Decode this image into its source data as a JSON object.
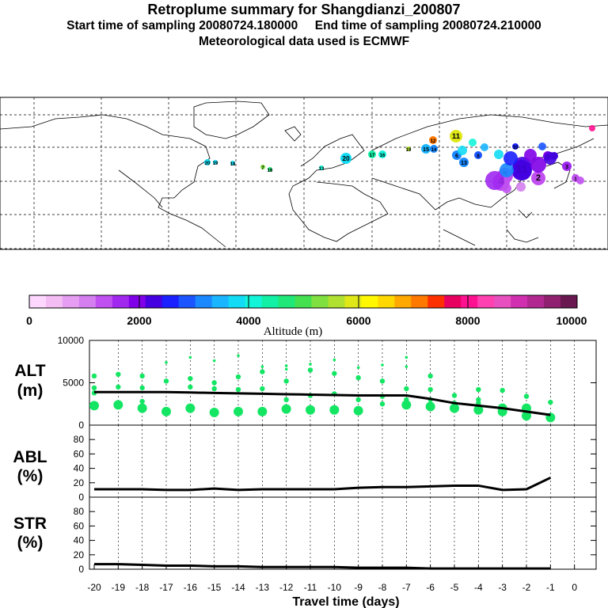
{
  "header": {
    "title": "Retroplume summary for Shangdianzi_200807",
    "subtitle_times": "Start time of sampling 20080724.180000     End time of sampling 20080724.210000",
    "subtitle_met": "Meteorological data used is ECMWF"
  },
  "map": {
    "label_texts": [
      "20",
      "20",
      "19",
      "19",
      "18",
      "17",
      "16",
      "16",
      "15",
      "14",
      "13",
      "13",
      "12",
      "11",
      "11",
      "10",
      "9",
      "8",
      "7",
      "6",
      "6",
      "5",
      "4",
      "3",
      "2",
      "1"
    ]
  },
  "colorbar": {
    "tick_labels": [
      "0",
      "2000",
      "4000",
      "6000",
      "8000",
      "10000"
    ],
    "title": "Altitude (m)",
    "colors": [
      "#fdd7fd",
      "#f4bdf4",
      "#e59ef2",
      "#d47ef0",
      "#c050ef",
      "#a028ef",
      "#8000e8",
      "#4400e0",
      "#1a20ff",
      "#1a55ff",
      "#1a88ff",
      "#1ab5ff",
      "#12dcf5",
      "#12f5d8",
      "#12f0a5",
      "#20e878",
      "#45e050",
      "#80e040",
      "#b0e030",
      "#e0e818",
      "#fff800",
      "#ffd800",
      "#ffa800",
      "#ff7800",
      "#ff3000",
      "#e80060",
      "#ff1090",
      "#ff40b0",
      "#e850c0",
      "#d030b0",
      "#b02890",
      "#902070",
      "#6a1850"
    ]
  },
  "chart_data": [
    {
      "type": "line",
      "panel": "ALT",
      "ylabel": "ALT\n(m)",
      "ylabel_lines": [
        "ALT",
        "(m)"
      ],
      "ylim": [
        0,
        10000
      ],
      "yticks": [
        0,
        5000,
        10000
      ],
      "ytick_labels": [
        "0",
        "5000",
        "10000"
      ],
      "series": [
        {
          "name": "mean altitude",
          "x": [
            -20,
            -19,
            -18,
            -17,
            -16,
            -15,
            -14,
            -13,
            -12,
            -11,
            -10,
            -9,
            -8,
            -7,
            -6,
            -5,
            -4,
            -3,
            -2,
            -1
          ],
          "values": [
            3900,
            3900,
            3900,
            3900,
            3850,
            3800,
            3750,
            3700,
            3650,
            3600,
            3550,
            3500,
            3500,
            3500,
            3100,
            2600,
            2300,
            2000,
            1600,
            1200
          ]
        }
      ],
      "scatter": [
        {
          "x": -20,
          "y": [
            4400,
            5800,
            2300,
            3800
          ]
        },
        {
          "x": -19,
          "y": [
            4500,
            6000,
            2400
          ]
        },
        {
          "x": -18,
          "y": [
            4400,
            5800,
            2800,
            2000
          ]
        },
        {
          "x": -17,
          "y": [
            7400,
            5200,
            1600
          ]
        },
        {
          "x": -16,
          "y": [
            8000,
            5500,
            4500,
            2000
          ]
        },
        {
          "x": -15,
          "y": [
            7600,
            5000,
            4300,
            1500
          ]
        },
        {
          "x": -14,
          "y": [
            8200,
            5700,
            4200,
            1600
          ]
        },
        {
          "x": -13,
          "y": [
            6900,
            6300,
            4300,
            1600
          ]
        },
        {
          "x": -12,
          "y": [
            7000,
            6600,
            5200,
            3000,
            1900
          ]
        },
        {
          "x": -11,
          "y": [
            7200,
            6500,
            3500,
            1800
          ]
        },
        {
          "x": -10,
          "y": [
            7700,
            6100,
            3700,
            1800
          ]
        },
        {
          "x": -9,
          "y": [
            6800,
            5600,
            3000,
            1700
          ]
        },
        {
          "x": -8,
          "y": [
            7100,
            5200,
            3400,
            2500
          ]
        },
        {
          "x": -7,
          "y": [
            8000,
            6900,
            4300,
            3000,
            2400
          ]
        },
        {
          "x": -6,
          "y": [
            5800,
            4200,
            3000,
            2200
          ]
        },
        {
          "x": -5,
          "y": [
            3500,
            2600,
            2000
          ]
        },
        {
          "x": -4,
          "y": [
            4200,
            3000,
            2600,
            1800
          ]
        },
        {
          "x": -3,
          "y": [
            4100,
            2000,
            1600
          ]
        },
        {
          "x": -2,
          "y": [
            3400,
            2000,
            1100
          ]
        },
        {
          "x": -1,
          "y": [
            2700,
            900
          ]
        }
      ]
    },
    {
      "type": "line",
      "panel": "ABL",
      "ylabel": "ABL\n(%)",
      "ylabel_lines": [
        "ABL",
        "(%)"
      ],
      "ylim": [
        0,
        100
      ],
      "yticks": [
        0,
        20,
        40,
        60,
        80
      ],
      "ytick_labels": [
        "0",
        "20",
        "40",
        "60",
        "80"
      ],
      "series": [
        {
          "name": "ABL fraction",
          "x": [
            -20,
            -19,
            -18,
            -17,
            -16,
            -15,
            -14,
            -13,
            -12,
            -11,
            -10,
            -9,
            -8,
            -7,
            -6,
            -5,
            -4,
            -3,
            -2,
            -1
          ],
          "values": [
            11,
            11,
            11,
            10,
            10,
            12,
            10,
            11,
            11,
            11,
            11,
            13,
            14,
            14,
            15,
            16,
            16,
            10,
            11,
            27
          ]
        }
      ]
    },
    {
      "type": "line",
      "panel": "STR",
      "ylabel": "STR\n(%)",
      "ylabel_lines": [
        "STR",
        "(%)"
      ],
      "ylim": [
        0,
        100
      ],
      "yticks": [
        0,
        20,
        40,
        60,
        80
      ],
      "ytick_labels": [
        "0",
        "20",
        "40",
        "60",
        "80"
      ],
      "xlabel": "Travel time (days)",
      "xticks": [
        -20,
        -19,
        -18,
        -17,
        -16,
        -15,
        -14,
        -13,
        -12,
        -11,
        -10,
        -9,
        -8,
        -7,
        -6,
        -5,
        -4,
        -3,
        -2,
        -1,
        0
      ],
      "xtick_labels": [
        "-20",
        "-19",
        "-18",
        "-17",
        "-16",
        "-15",
        "-14",
        "-13",
        "-12",
        "-11",
        "-10",
        "-9",
        "-8",
        "-7",
        "-6",
        "-5",
        "-4",
        "-3",
        "-2",
        "-1",
        "0"
      ],
      "series": [
        {
          "name": "stratospheric fraction",
          "x": [
            -20,
            -19,
            -18,
            -17,
            -16,
            -15,
            -14,
            -13,
            -12,
            -11,
            -10,
            -9,
            -8,
            -7,
            -6,
            -5,
            -4,
            -3,
            -2,
            -1
          ],
          "values": [
            7,
            7,
            6,
            5,
            5,
            4,
            4,
            3,
            3,
            3,
            3,
            2,
            2,
            2,
            1,
            1,
            1,
            1,
            1,
            1
          ]
        }
      ]
    }
  ]
}
